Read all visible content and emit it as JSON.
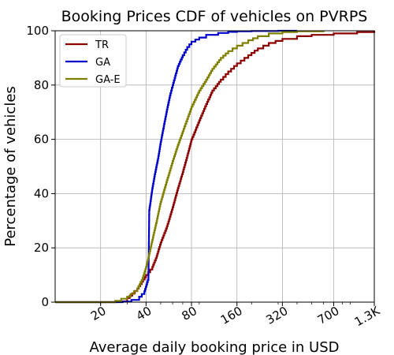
{
  "chart_data": {
    "type": "line",
    "title": "Booking Prices CDF of vehicles on PVRPS",
    "xlabel": "Average daily booking price in USD",
    "ylabel": "Percentage of vehicles",
    "xscale": "log2",
    "xlim": [
      10,
      1300
    ],
    "ylim": [
      0,
      100
    ],
    "x_ticks": [
      {
        "value": 20,
        "label": "20"
      },
      {
        "value": 40,
        "label": "40"
      },
      {
        "value": 80,
        "label": "80"
      },
      {
        "value": 160,
        "label": "160"
      },
      {
        "value": 320,
        "label": "320"
      },
      {
        "value": 700,
        "label": "700"
      },
      {
        "value": 1300,
        "label": "1.3K"
      }
    ],
    "y_ticks": [
      0,
      20,
      40,
      60,
      80,
      100
    ],
    "grid": true,
    "legend_position": "top-left",
    "series": [
      {
        "name": "TR",
        "color": "#8b0000",
        "x": [
          10,
          25,
          30,
          35,
          40,
          44,
          47,
          50,
          55,
          60,
          65,
          70,
          75,
          80,
          90,
          100,
          110,
          125,
          140,
          160,
          190,
          220,
          260,
          320,
          400,
          500,
          700,
          1000,
          1300
        ],
        "y": [
          0,
          0.3,
          1.5,
          5,
          10,
          13,
          17,
          22,
          28,
          35,
          42,
          48,
          54,
          60,
          67,
          73,
          78,
          82,
          85,
          88,
          91,
          93.5,
          95.5,
          97,
          98,
          98.5,
          99,
          99.5,
          100
        ]
      },
      {
        "name": "GA",
        "color": "#0000cc",
        "x": [
          10,
          28,
          32,
          36,
          39,
          41.5,
          42,
          43,
          44,
          46,
          48,
          50,
          52,
          55,
          58,
          60,
          65,
          70,
          75,
          80,
          90,
          100,
          120,
          140,
          160,
          200,
          300,
          400
        ],
        "y": [
          0,
          0.2,
          0.8,
          2,
          4,
          9,
          34,
          38,
          42,
          48,
          53,
          59,
          64,
          71,
          77,
          80,
          87,
          91,
          94,
          96,
          97.5,
          98.5,
          99.2,
          99.6,
          99.8,
          99.9,
          100,
          100
        ]
      },
      {
        "name": "GA-E",
        "color": "#808000",
        "x": [
          10,
          25,
          30,
          35,
          38,
          40,
          42,
          44,
          47,
          50,
          55,
          60,
          65,
          70,
          80,
          90,
          100,
          110,
          125,
          140,
          160,
          190,
          220,
          260,
          320,
          400,
          600
        ],
        "y": [
          0,
          0.5,
          2,
          5,
          9,
          13,
          18,
          23,
          30,
          37,
          45,
          52,
          58,
          63,
          72,
          78,
          82,
          86,
          90,
          92.5,
          94.5,
          96.5,
          98,
          99,
          99.5,
          99.8,
          100
        ]
      }
    ]
  }
}
